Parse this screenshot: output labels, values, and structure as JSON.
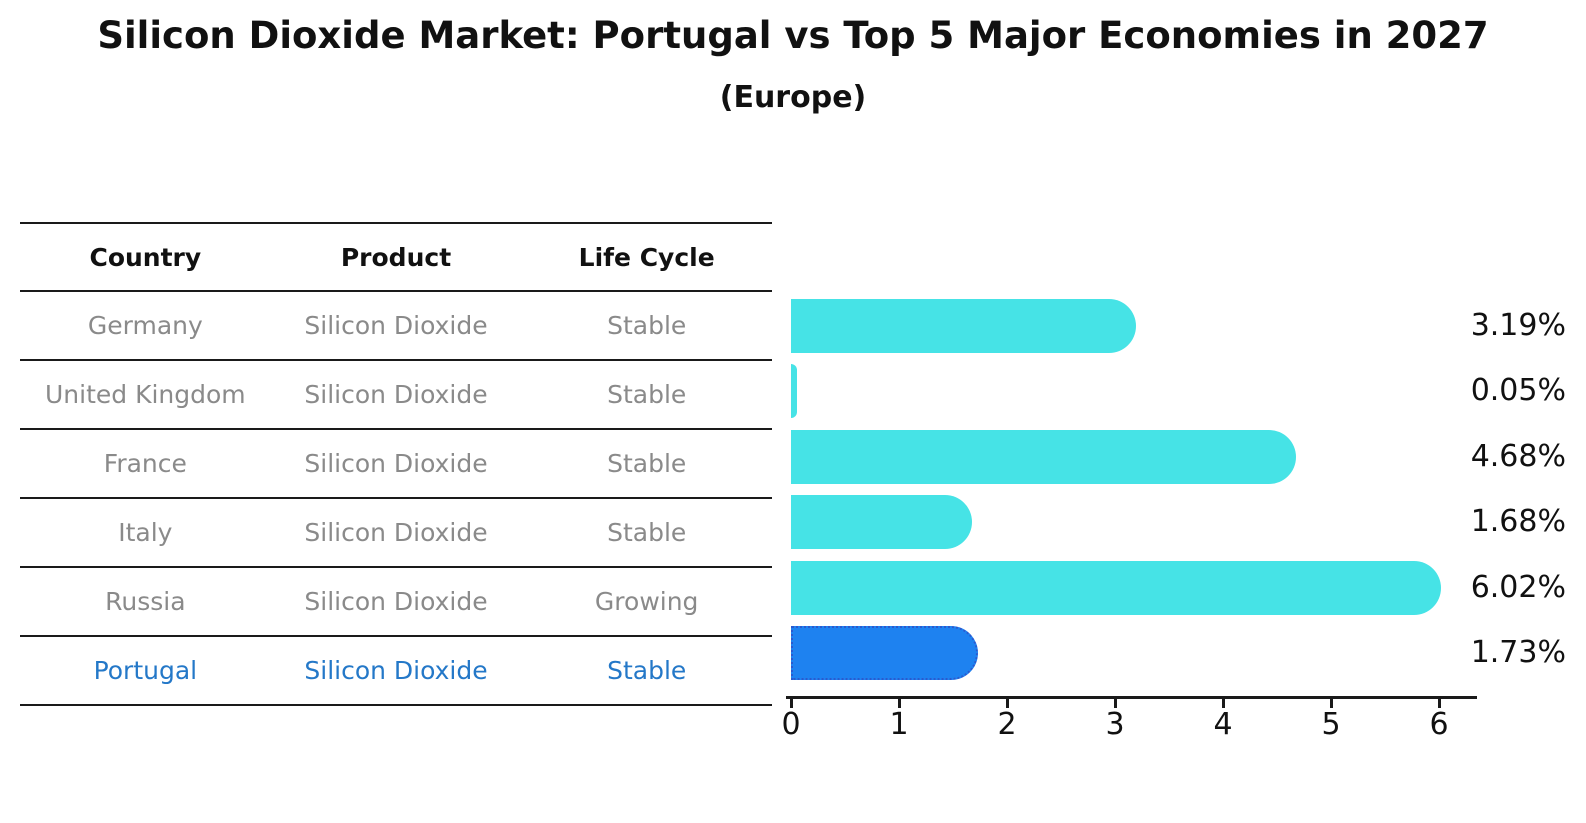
{
  "title": "Silicon Dioxide Market: Portugal vs Top 5 Major Economies in 2027",
  "subtitle": "(Europe)",
  "colors": {
    "bar": "#46E3E6",
    "highlight_bar": "#1E82F0",
    "highlight_bar_border": "#2A5ACF",
    "highlight_text": "#2478C8",
    "table_text": "#8A8A8A",
    "heading_text": "#111111",
    "axis": "#1a1a1a"
  },
  "table": {
    "headers": [
      "Country",
      "Product",
      "Life Cycle"
    ],
    "rows": [
      {
        "country": "Germany",
        "product": "Silicon Dioxide",
        "life_cycle": "Stable",
        "highlighted": false
      },
      {
        "country": "United Kingdom",
        "product": "Silicon Dioxide",
        "life_cycle": "Stable",
        "highlighted": false
      },
      {
        "country": "France",
        "product": "Silicon Dioxide",
        "life_cycle": "Stable",
        "highlighted": false
      },
      {
        "country": "Italy",
        "product": "Silicon Dioxide",
        "life_cycle": "Stable",
        "highlighted": false
      },
      {
        "country": "Russia",
        "product": "Silicon Dioxide",
        "life_cycle": "Growing",
        "highlighted": false
      },
      {
        "country": "Portugal",
        "product": "Silicon Dioxide",
        "life_cycle": "Stable",
        "highlighted": true
      }
    ]
  },
  "chart_data": {
    "type": "bar",
    "orientation": "horizontal",
    "title": "Silicon Dioxide Market: Portugal vs Top 5 Major Economies in 2027",
    "subtitle": "(Europe)",
    "categories": [
      "Germany",
      "United Kingdom",
      "France",
      "Italy",
      "Russia",
      "Portugal"
    ],
    "values": [
      3.19,
      0.05,
      4.68,
      1.68,
      6.02,
      1.73
    ],
    "value_labels": [
      "3.19%",
      "0.05%",
      "4.68%",
      "1.68%",
      "6.02%",
      "1.73%"
    ],
    "xlim": [
      0,
      6.35
    ],
    "xticks": [
      0,
      1,
      2,
      3,
      4,
      5,
      6
    ],
    "highlight_category": "Portugal",
    "grid": false,
    "legend": false
  }
}
